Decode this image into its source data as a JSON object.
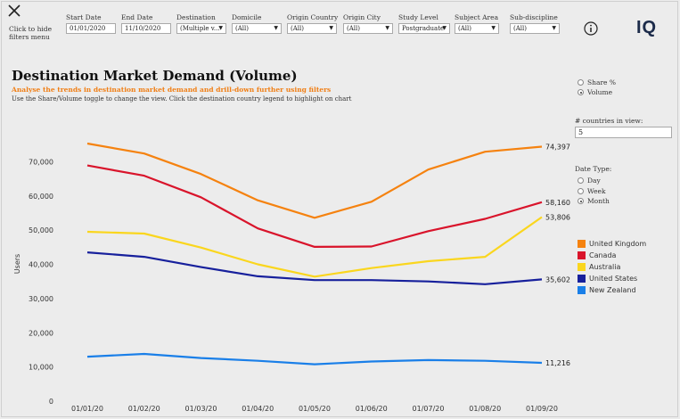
{
  "header": {
    "hide_filters_label": "Click to hide filters menu",
    "logo_text": "IQ"
  },
  "filters": [
    {
      "label": "Start Date",
      "value": "01/01/2020",
      "dropdown": false
    },
    {
      "label": "End Date",
      "value": "11/10/2020",
      "dropdown": false
    },
    {
      "label": "Destination",
      "value": "(Multiple v...",
      "dropdown": true
    },
    {
      "label": "Domicile",
      "value": "(All)",
      "dropdown": true
    },
    {
      "label": "Origin Country",
      "value": "(All)",
      "dropdown": true
    },
    {
      "label": "Origin City",
      "value": "(All)",
      "dropdown": true
    },
    {
      "label": "Study Level",
      "value": "Postgraduate",
      "dropdown": true
    },
    {
      "label": "Subject Area",
      "value": "(All)",
      "dropdown": true
    },
    {
      "label": "Sub-discipline",
      "value": "(All)",
      "dropdown": true
    }
  ],
  "main": {
    "title": "Destination Market Demand (Volume)",
    "subtitle": "Analyse the trends in destination market demand and drill-down further using filters",
    "instructions": "Use the Share/Volume toggle to change the view. Click the destination country legend to highlight on chart"
  },
  "side_panel": {
    "view_options": [
      {
        "label": "Share %",
        "selected": false
      },
      {
        "label": "Volume",
        "selected": true
      }
    ],
    "countries_label": "# countries in view:",
    "countries_value": "5",
    "date_type_label": "Date Type:",
    "date_types": [
      {
        "label": "Day",
        "selected": false
      },
      {
        "label": "Week",
        "selected": false
      },
      {
        "label": "Month",
        "selected": true
      }
    ]
  },
  "colors": {
    "united_kingdom": "#f5820f",
    "canada": "#d9142b",
    "australia": "#fad61e",
    "united_states": "#17209c",
    "new_zealand": "#1a7fe8"
  },
  "chart_data": {
    "type": "line",
    "title": "Destination Market Demand (Volume)",
    "xlabel": "",
    "ylabel": "Users",
    "ylim": [
      0,
      80000
    ],
    "yticks": [
      0,
      10000,
      20000,
      30000,
      40000,
      50000,
      60000,
      70000
    ],
    "ytick_labels": [
      "0",
      "10,000",
      "20,000",
      "30,000",
      "40,000",
      "50,000",
      "60,000",
      "70,000"
    ],
    "x": [
      "01/01/20",
      "01/02/20",
      "01/03/20",
      "01/04/20",
      "01/05/20",
      "01/06/20",
      "01/07/20",
      "01/08/20",
      "01/09/20"
    ],
    "series": [
      {
        "name": "United Kingdom",
        "color": "#f5820f",
        "values": [
          75300,
          72400,
          66400,
          58700,
          53600,
          58300,
          67700,
          72900,
          74397
        ],
        "end_label": "74,397"
      },
      {
        "name": "Canada",
        "color": "#d9142b",
        "values": [
          68900,
          65900,
          59600,
          50500,
          45100,
          45200,
          49700,
          53300,
          58160
        ],
        "end_label": "58,160"
      },
      {
        "name": "Australia",
        "color": "#fad61e",
        "values": [
          49500,
          49000,
          44900,
          40000,
          36400,
          38900,
          40900,
          42200,
          53806
        ],
        "end_label": "53,806"
      },
      {
        "name": "United States",
        "color": "#17209c",
        "values": [
          43500,
          42200,
          39200,
          36500,
          35400,
          35400,
          35000,
          34200,
          35602
        ],
        "end_label": "35,602"
      },
      {
        "name": "New Zealand",
        "color": "#1a7fe8",
        "values": [
          13000,
          13800,
          12600,
          11800,
          10800,
          11600,
          12000,
          11800,
          11216
        ],
        "end_label": "11,216"
      }
    ],
    "legend_position": "right"
  }
}
